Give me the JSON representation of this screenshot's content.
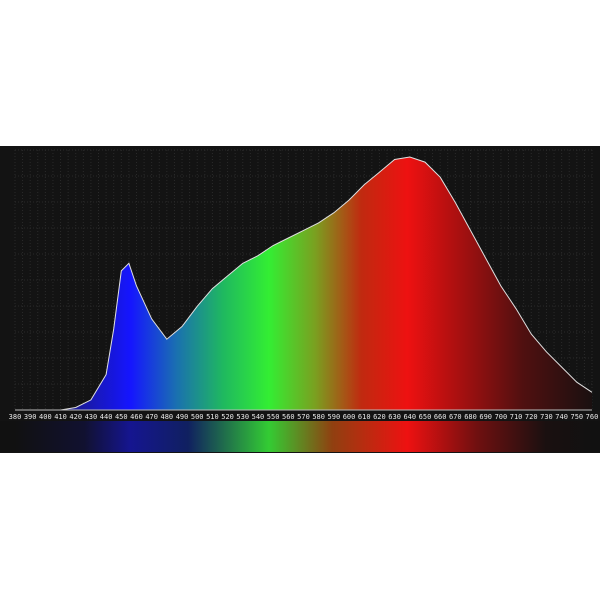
{
  "chart_data": {
    "type": "area",
    "title": "",
    "xlabel": "",
    "ylabel": "",
    "xlim": [
      380,
      760
    ],
    "ylim": [
      0,
      1
    ],
    "grid": true,
    "x_ticks": [
      380,
      390,
      400,
      410,
      420,
      430,
      440,
      450,
      460,
      470,
      480,
      490,
      500,
      510,
      520,
      530,
      540,
      550,
      560,
      570,
      580,
      590,
      600,
      610,
      620,
      630,
      640,
      650,
      660,
      670,
      680,
      690,
      700,
      710,
      720,
      730,
      740,
      750,
      760
    ],
    "x": [
      380,
      400,
      410,
      420,
      430,
      440,
      445,
      450,
      455,
      460,
      470,
      480,
      490,
      500,
      510,
      520,
      530,
      540,
      550,
      560,
      570,
      580,
      590,
      600,
      610,
      620,
      630,
      640,
      650,
      660,
      670,
      680,
      690,
      700,
      710,
      720,
      730,
      740,
      750,
      760
    ],
    "y": [
      0,
      0,
      0,
      0.01,
      0.04,
      0.14,
      0.32,
      0.55,
      0.58,
      0.49,
      0.36,
      0.28,
      0.33,
      0.41,
      0.48,
      0.53,
      0.58,
      0.61,
      0.65,
      0.68,
      0.71,
      0.74,
      0.78,
      0.83,
      0.89,
      0.94,
      0.99,
      1.0,
      0.98,
      0.92,
      0.82,
      0.71,
      0.6,
      0.49,
      0.4,
      0.3,
      0.23,
      0.17,
      0.11,
      0.07
    ],
    "colors": {
      "background": "#131313",
      "curve": "#e0e0e0",
      "blue": "#1a1aff",
      "green": "#33ee33",
      "red": "#ee1111"
    }
  }
}
